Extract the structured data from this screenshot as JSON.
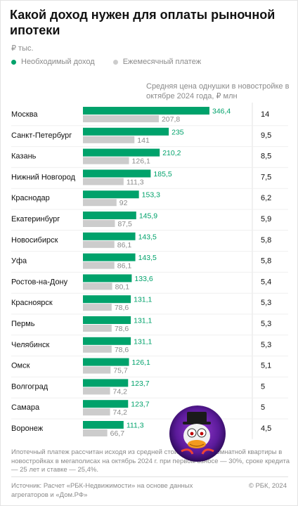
{
  "header": {
    "title": "Какой доход нужен для оплаты рыночной ипотеки",
    "unit": "₽ тыс."
  },
  "legend": {
    "required_income": "Необходимый доход",
    "monthly_payment": "Ежемесячный платеж"
  },
  "price_column_header": "Средняя цена однушки в новостройке в октябре 2024 года, ₽ млн",
  "colors": {
    "income": "#00a26b",
    "payment": "#cccccc",
    "text": "#111111",
    "muted": "#8a8a8a"
  },
  "chart_data": {
    "type": "bar",
    "orientation": "horizontal",
    "categories": [
      "Москва",
      "Санкт-Петербург",
      "Казань",
      "Нижний Новгород",
      "Краснодар",
      "Екатеринбург",
      "Новосибирск",
      "Уфа",
      "Ростов-на-Дону",
      "Красноярск",
      "Пермь",
      "Челябинск",
      "Омск",
      "Волгоград",
      "Самара",
      "Воронеж"
    ],
    "series": [
      {
        "name": "Необходимый доход",
        "values": [
          346.4,
          235,
          210.2,
          185.5,
          153.3,
          145.9,
          143.5,
          143.5,
          133.6,
          131.1,
          131.1,
          131.1,
          126.1,
          123.7,
          123.7,
          111.3
        ]
      },
      {
        "name": "Ежемесячный платеж",
        "values": [
          207.8,
          141,
          126.1,
          111.3,
          92,
          87.5,
          86.1,
          86.1,
          80.1,
          78.6,
          78.6,
          78.6,
          75.7,
          74.2,
          74.2,
          66.7
        ]
      }
    ],
    "value_labels": {
      "income": [
        "346,4",
        "235",
        "210,2",
        "185,5",
        "153,3",
        "145,9",
        "143,5",
        "143,5",
        "133,6",
        "131,1",
        "131,1",
        "131,1",
        "126,1",
        "123,7",
        "123,7",
        "111,3"
      ],
      "payment": [
        "207,8",
        "141",
        "126,1",
        "111,3",
        "92",
        "87,5",
        "86,1",
        "86,1",
        "80,1",
        "78,6",
        "78,6",
        "78,6",
        "75,7",
        "74,2",
        "74,2",
        "66,7"
      ]
    },
    "prices": [
      "14",
      "9,5",
      "8,5",
      "7,5",
      "6,2",
      "5,9",
      "5,8",
      "5,8",
      "5,4",
      "5,3",
      "5,3",
      "5,3",
      "5,1",
      "5",
      "5",
      "4,5"
    ],
    "xlim": [
      0,
      346.4
    ]
  },
  "footnote": "Ипотечный платеж рассчитан исходя из средней стоимости однокомнатной квартиры в новостройках в мегаполисах на октябрь 2024 г. при первом взносе — 30%, сроке кредита — 25 лет и ставке — 25,4%.",
  "source": "Источник: Расчет «РБК-Недвижимости» на основе данных агрегаторов и «Дом.РФ»",
  "copyright": "© РБК, 2024"
}
